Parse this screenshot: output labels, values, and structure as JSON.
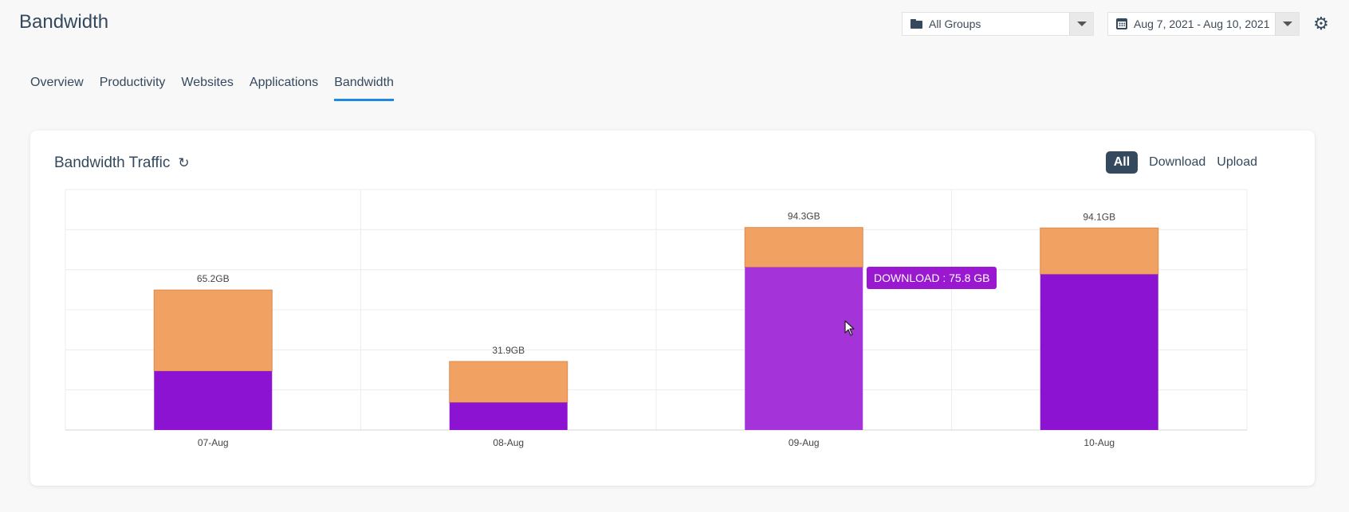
{
  "header": {
    "title": "Bandwidth",
    "group_select": {
      "value": "All Groups",
      "icon": "folder-icon"
    },
    "date_select": {
      "value": "Aug 7, 2021 - Aug 10, 2021",
      "icon": "calendar-icon"
    },
    "settings_icon": "gear-icon"
  },
  "tabs": [
    {
      "label": "Overview",
      "active": false
    },
    {
      "label": "Productivity",
      "active": false
    },
    {
      "label": "Websites",
      "active": false
    },
    {
      "label": "Applications",
      "active": false
    },
    {
      "label": "Bandwidth",
      "active": true
    }
  ],
  "card": {
    "title": "Bandwidth Traffic",
    "filters": [
      {
        "label": "All",
        "active": true
      },
      {
        "label": "Download",
        "active": false
      },
      {
        "label": "Upload",
        "active": false
      }
    ]
  },
  "tooltip": {
    "text": "DOWNLOAD : 75.8 GB"
  },
  "colors": {
    "download": "#8c13d1",
    "download_hover": "#a433d9",
    "upload": "#f1a262",
    "upload_stroke": "#d98a4e",
    "accent": "#1e88e5"
  },
  "chart_data": {
    "type": "bar",
    "stacked": true,
    "categories": [
      "07-Aug",
      "08-Aug",
      "09-Aug",
      "10-Aug"
    ],
    "series": [
      {
        "name": "Download",
        "values": [
          27.4,
          12.8,
          75.8,
          72.5
        ]
      },
      {
        "name": "Upload",
        "values": [
          37.8,
          19.1,
          18.5,
          21.6
        ]
      }
    ],
    "totals": [
      "65.2GB",
      "31.9GB",
      "94.3GB",
      "94.1GB"
    ],
    "ylim": [
      0,
      112
    ],
    "grid": true,
    "highlighted": {
      "category": "09-Aug",
      "series": "Download"
    }
  }
}
